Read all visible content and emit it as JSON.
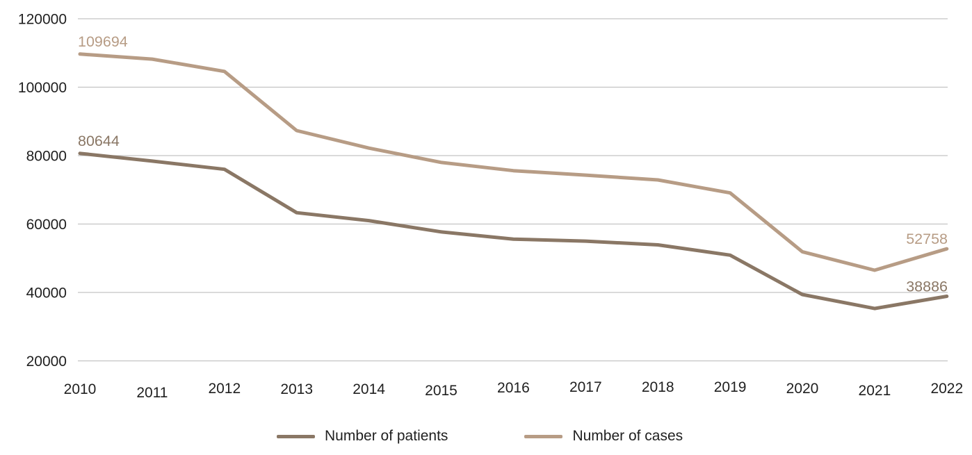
{
  "chart_data": {
    "type": "line",
    "x_labels": [
      "2010",
      "2011",
      "2012",
      "2013",
      "2014",
      "2015",
      "2016",
      "2017",
      "2018",
      "2019",
      "2020",
      "2021",
      "2022"
    ],
    "yticks": [
      120000,
      100000,
      80000,
      60000,
      40000,
      20000
    ],
    "ylim": [
      20000,
      120000
    ],
    "grid": "horizontal-only",
    "legend_position": "bottom-center",
    "axis_text_color": "#1f1f1f",
    "gridline_color": "#c3c3c3",
    "series": [
      {
        "name": "Number of patients",
        "color": "#8a7765",
        "values": [
          80644,
          78400,
          76000,
          63300,
          61000,
          57700,
          55600,
          55000,
          53900,
          50900,
          39400,
          35300,
          38886
        ],
        "point_labels": [
          {
            "index": 0,
            "text": "80644",
            "placement": "above-left"
          },
          {
            "index": 12,
            "text": "38886",
            "placement": "above-right"
          }
        ]
      },
      {
        "name": "Number of cases",
        "color": "#b79c85",
        "values": [
          109694,
          108200,
          104600,
          87300,
          82200,
          78000,
          75600,
          74300,
          72900,
          69100,
          51900,
          46500,
          52758
        ],
        "point_labels": [
          {
            "index": 0,
            "text": "109694",
            "placement": "above-left"
          },
          {
            "index": 12,
            "text": "52758",
            "placement": "above-right"
          }
        ]
      }
    ]
  }
}
